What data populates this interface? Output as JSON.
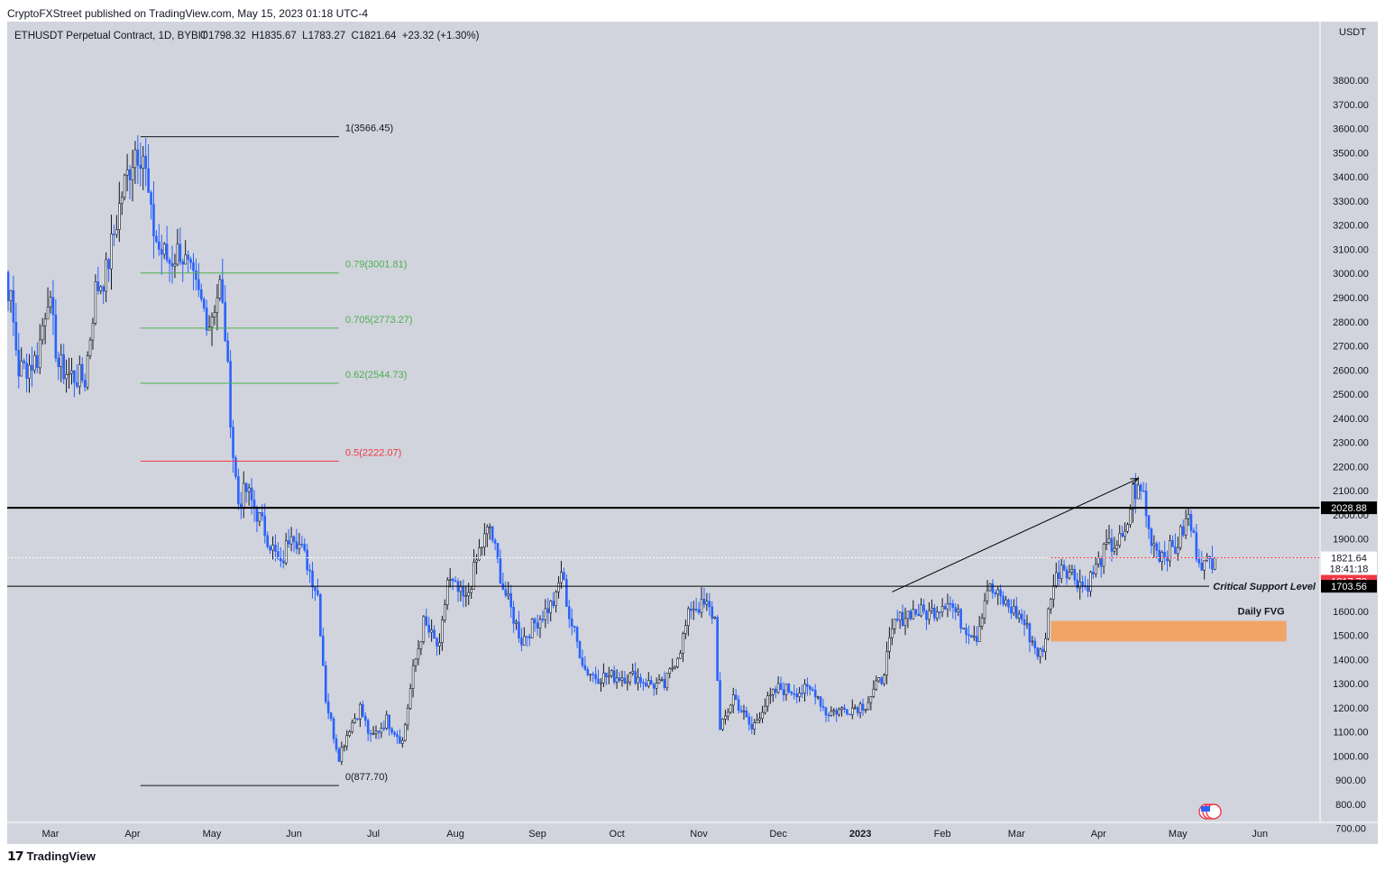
{
  "header": {
    "published": "CryptoFXStreet published on TradingView.com, May 15, 2023 01:18 UTC-4",
    "symbol_line": "ETHUSDT Perpetual Contract, 1D, BYBIT",
    "ohlc": "O1798.32  H1835.67  L1783.27  C1821.64  +23.32 (+1.30%)"
  },
  "footer": {
    "brand": "TradingView"
  },
  "colors": {
    "background": "#d1d4dc",
    "up": "#131722",
    "down": "#2962ff",
    "fib_green": "#4caf50",
    "fib_red": "#f23645",
    "fvg": "#f0a468",
    "price_tag": "#f23645"
  },
  "chart_data": {
    "type": "candlestick",
    "currency": "USDT",
    "ylim": [
      600,
      3950
    ],
    "y_ticks": [
      700,
      800,
      900,
      1000,
      1100,
      1200,
      1300,
      1400,
      1500,
      1600,
      1700,
      1800,
      1900,
      2000,
      2100,
      2200,
      2300,
      2400,
      2500,
      2600,
      2700,
      2800,
      2900,
      3000,
      3100,
      3200,
      3300,
      3400,
      3500,
      3600,
      3700,
      3800
    ],
    "x_ticks": [
      {
        "label": "Mar",
        "date": "2022-03-01"
      },
      {
        "label": "Apr",
        "date": "2022-04-01"
      },
      {
        "label": "May",
        "date": "2022-05-01"
      },
      {
        "label": "Jun",
        "date": "2022-06-01"
      },
      {
        "label": "Jul",
        "date": "2022-07-01"
      },
      {
        "label": "Aug",
        "date": "2022-08-01"
      },
      {
        "label": "Sep",
        "date": "2022-09-01"
      },
      {
        "label": "Oct",
        "date": "2022-10-01"
      },
      {
        "label": "Nov",
        "date": "2022-11-01"
      },
      {
        "label": "Dec",
        "date": "2022-12-01"
      },
      {
        "label": "2023",
        "date": "2023-01-01",
        "bold": true
      },
      {
        "label": "Feb",
        "date": "2023-02-01"
      },
      {
        "label": "Mar",
        "date": "2023-03-01"
      },
      {
        "label": "Apr",
        "date": "2023-04-01"
      },
      {
        "label": "May",
        "date": "2023-05-01"
      },
      {
        "label": "Jun",
        "date": "2023-06-01"
      }
    ],
    "price_path": [
      [
        "2022-02-07",
        2950
      ],
      [
        "2022-02-09",
        3190
      ],
      [
        "2022-02-14",
        2880
      ],
      [
        "2022-02-17",
        2600
      ],
      [
        "2022-02-21",
        2620
      ],
      [
        "2022-02-24",
        2650
      ],
      [
        "2022-02-28",
        2920
      ],
      [
        "2022-03-04",
        2620
      ],
      [
        "2022-03-08",
        2580
      ],
      [
        "2022-03-14",
        2560
      ],
      [
        "2022-03-18",
        2930
      ],
      [
        "2022-03-22",
        3000
      ],
      [
        "2022-03-28",
        3330
      ],
      [
        "2022-04-02",
        3520
      ],
      [
        "2022-04-05",
        3500
      ],
      [
        "2022-04-08",
        3220
      ],
      [
        "2022-04-11",
        3100
      ],
      [
        "2022-04-15",
        3050
      ],
      [
        "2022-04-19",
        3100
      ],
      [
        "2022-04-22",
        3010
      ],
      [
        "2022-04-26",
        2900
      ],
      [
        "2022-04-30",
        2800
      ],
      [
        "2022-05-04",
        2950
      ],
      [
        "2022-05-06",
        2750
      ],
      [
        "2022-05-09",
        2250
      ],
      [
        "2022-05-11",
        2050
      ],
      [
        "2022-05-14",
        2100
      ],
      [
        "2022-05-20",
        1960
      ],
      [
        "2022-05-27",
        1780
      ],
      [
        "2022-05-31",
        1950
      ],
      [
        "2022-06-06",
        1800
      ],
      [
        "2022-06-10",
        1670
      ],
      [
        "2022-06-13",
        1240
      ],
      [
        "2022-06-16",
        1090
      ],
      [
        "2022-06-18",
        1000
      ],
      [
        "2022-06-22",
        1120
      ],
      [
        "2022-06-26",
        1200
      ],
      [
        "2022-06-30",
        1070
      ],
      [
        "2022-07-06",
        1150
      ],
      [
        "2022-07-12",
        1060
      ],
      [
        "2022-07-16",
        1350
      ],
      [
        "2022-07-20",
        1550
      ],
      [
        "2022-07-26",
        1440
      ],
      [
        "2022-07-29",
        1730
      ],
      [
        "2022-08-05",
        1640
      ],
      [
        "2022-08-10",
        1850
      ],
      [
        "2022-08-14",
        1950
      ],
      [
        "2022-08-19",
        1700
      ],
      [
        "2022-08-26",
        1480
      ],
      [
        "2022-08-31",
        1550
      ],
      [
        "2022-09-08",
        1650
      ],
      [
        "2022-09-10",
        1770
      ],
      [
        "2022-09-13",
        1580
      ],
      [
        "2022-09-19",
        1360
      ],
      [
        "2022-09-23",
        1330
      ],
      [
        "2022-09-30",
        1330
      ],
      [
        "2022-10-08",
        1330
      ],
      [
        "2022-10-13",
        1300
      ],
      [
        "2022-10-19",
        1290
      ],
      [
        "2022-10-25",
        1450
      ],
      [
        "2022-10-29",
        1620
      ],
      [
        "2022-11-04",
        1620
      ],
      [
        "2022-11-07",
        1570
      ],
      [
        "2022-11-09",
        1100
      ],
      [
        "2022-11-14",
        1250
      ],
      [
        "2022-11-21",
        1110
      ],
      [
        "2022-11-25",
        1200
      ],
      [
        "2022-12-01",
        1280
      ],
      [
        "2022-12-09",
        1270
      ],
      [
        "2022-12-15",
        1270
      ],
      [
        "2022-12-19",
        1180
      ],
      [
        "2022-12-29",
        1200
      ],
      [
        "2023-01-03",
        1215
      ],
      [
        "2023-01-09",
        1320
      ],
      [
        "2023-01-14",
        1550
      ],
      [
        "2023-01-20",
        1600
      ],
      [
        "2023-01-27",
        1590
      ],
      [
        "2023-02-03",
        1650
      ],
      [
        "2023-02-09",
        1540
      ],
      [
        "2023-02-14",
        1500
      ],
      [
        "2023-02-18",
        1700
      ],
      [
        "2023-02-24",
        1640
      ],
      [
        "2023-03-03",
        1570
      ],
      [
        "2023-03-09",
        1430
      ],
      [
        "2023-03-11",
        1420
      ],
      [
        "2023-03-14",
        1680
      ],
      [
        "2023-03-18",
        1800
      ],
      [
        "2023-03-27",
        1700
      ],
      [
        "2023-04-04",
        1860
      ],
      [
        "2023-04-11",
        1900
      ],
      [
        "2023-04-14",
        2100
      ],
      [
        "2023-04-18",
        2090
      ],
      [
        "2023-04-20",
        1930
      ],
      [
        "2023-04-24",
        1840
      ],
      [
        "2023-04-30",
        1860
      ],
      [
        "2023-05-05",
        1990
      ],
      [
        "2023-05-08",
        1850
      ],
      [
        "2023-05-11",
        1790
      ],
      [
        "2023-05-15",
        1822
      ]
    ],
    "fibonacci": {
      "start_date": "2022-04-04",
      "end_date": "2022-06-18",
      "levels": [
        {
          "label": "1(3566.45)",
          "price": 3566.45,
          "kind": "black"
        },
        {
          "label": "0.79(3001.81)",
          "price": 3001.81,
          "kind": "green"
        },
        {
          "label": "0.705(2773.27)",
          "price": 2773.27,
          "kind": "green"
        },
        {
          "label": "0.62(2544.73)",
          "price": 2544.73,
          "kind": "green"
        },
        {
          "label": "0.5(2222.07)",
          "price": 2222.07,
          "kind": "red"
        },
        {
          "label": "0(877.70)",
          "price": 877.7,
          "kind": "black"
        }
      ]
    },
    "resistance": {
      "price": 2028.88,
      "label": "2028.88"
    },
    "support": {
      "price": 1703.56,
      "label": "1703.56",
      "annotation": "Critical Support Level"
    },
    "current_price": {
      "price": 1821.64,
      "label": "1821.64",
      "countdown": "18:41:18"
    },
    "red_tag": {
      "price": 1817.72,
      "label": "1817.72"
    },
    "fvg": {
      "label": "Daily FVG",
      "low": 1475,
      "high": 1560,
      "start_date": "2023-03-14",
      "end_date": "2023-06-11"
    },
    "trend_arrow": {
      "from_date": "2023-01-13",
      "from_price": 1680,
      "to_date": "2023-04-16",
      "to_price": 2150
    }
  }
}
